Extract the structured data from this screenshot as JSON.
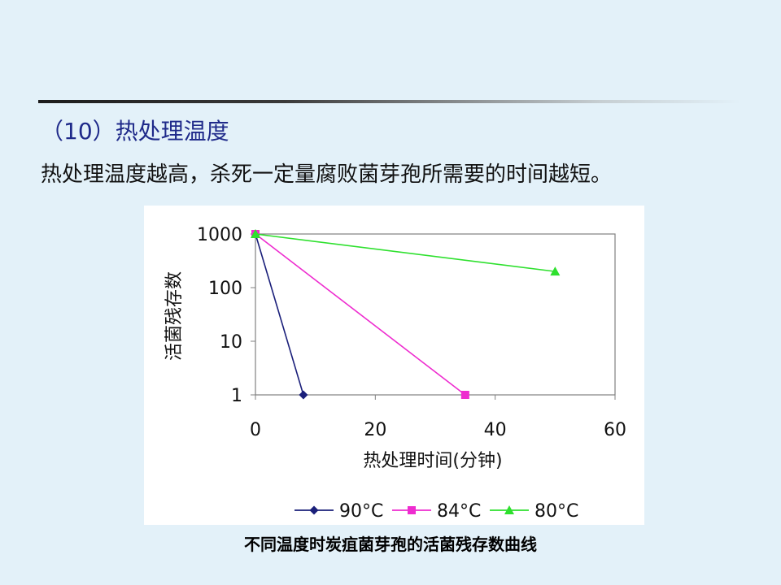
{
  "slide": {
    "heading": "（10）热处理温度",
    "subtext": "热处理温度越高，杀死一定量腐败菌芽孢所需要的时间越短。",
    "caption": "不同温度时炭疽菌芽孢的活菌残存数曲线"
  },
  "chart_data": {
    "type": "line",
    "title": "",
    "xlabel": "热处理时间(分钟)",
    "ylabel": "活菌残存数",
    "xlim": [
      0,
      60
    ],
    "ylim": [
      1,
      1000
    ],
    "yscale": "log",
    "x_ticks": [
      "0",
      "20",
      "40",
      "60"
    ],
    "y_ticks": [
      "1",
      "10",
      "100",
      "1000"
    ],
    "grid": "horizontal",
    "legend_position": "bottom",
    "series": [
      {
        "name": "90°C",
        "color": "#1a1f7a",
        "marker": "diamond",
        "x": [
          0,
          8
        ],
        "y": [
          1000,
          1
        ]
      },
      {
        "name": "84°C",
        "color": "#ee2ccf",
        "marker": "square",
        "x": [
          0,
          35
        ],
        "y": [
          1000,
          1
        ]
      },
      {
        "name": "80°C",
        "color": "#2ee02e",
        "marker": "triangle",
        "x": [
          0,
          50
        ],
        "y": [
          1000,
          200
        ]
      }
    ]
  }
}
